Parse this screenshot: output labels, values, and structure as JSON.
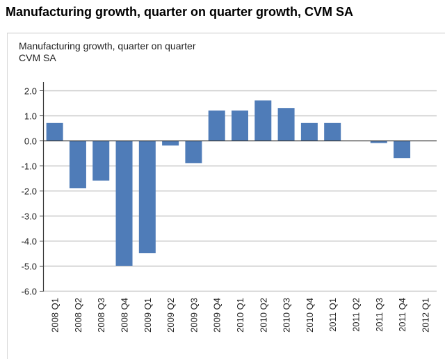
{
  "page": {
    "title": "Manufacturing growth, quarter on quarter growth, CVM SA"
  },
  "chart_data": {
    "type": "bar",
    "title_lines": [
      "Manufacturing growth, quarter on quarter",
      "CVM SA"
    ],
    "xlabel": "",
    "ylabel": "",
    "categories": [
      "2008 Q1",
      "2008 Q2",
      "2008 Q3",
      "2008 Q4",
      "2009 Q1",
      "2009 Q2",
      "2009 Q3",
      "2009 Q4",
      "2010 Q1",
      "2010 Q2",
      "2010 Q3",
      "2010 Q4",
      "2011 Q1",
      "2011 Q2",
      "2011 Q3",
      "2011 Q4",
      "2012 Q1"
    ],
    "values": [
      0.7,
      -1.9,
      -1.6,
      -5.0,
      -4.5,
      -0.2,
      -0.9,
      1.2,
      1.2,
      1.6,
      1.3,
      0.7,
      0.7,
      0.0,
      -0.1,
      -0.7,
      null
    ],
    "ylim": [
      -6.0,
      2.0
    ],
    "yticks": [
      2.0,
      1.0,
      0.0,
      -1.0,
      -2.0,
      -3.0,
      -4.0,
      -5.0,
      -6.0
    ],
    "ytick_labels": [
      "2.0",
      "1.0",
      "0.0",
      "-1.0",
      "-2.0",
      "-3.0",
      "-4.0",
      "-5.0",
      "-6.0"
    ],
    "grid": true,
    "legend": "none",
    "bar_color": "#4f7cb8",
    "grid_color": "#c8c8c8"
  }
}
